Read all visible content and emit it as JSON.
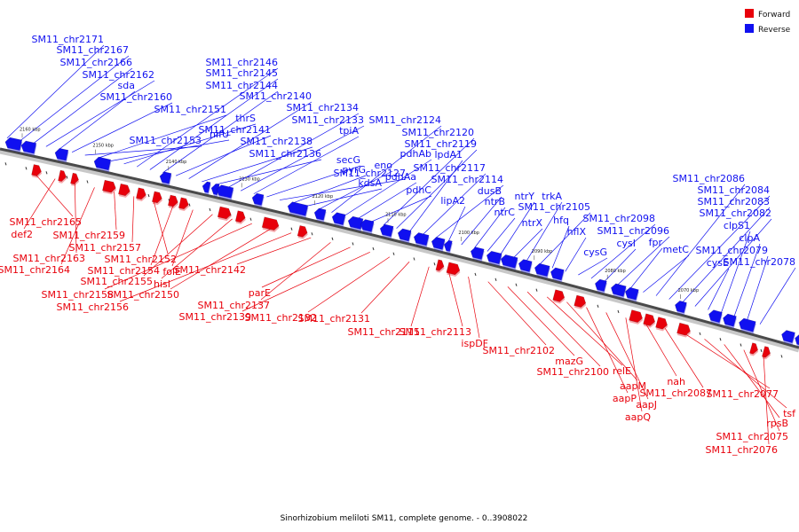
{
  "caption": "Sinorhizobium meliloti SM11, complete genome. - 0..3908022",
  "legend": [
    {
      "label": "Forward",
      "color": "#e8000b"
    },
    {
      "label": "Reverse",
      "color": "#1010f0"
    }
  ],
  "scale_unit": "kbp",
  "ticks": [
    {
      "kbp": 2160,
      "label": "2160 kbp"
    },
    {
      "kbp": 2150,
      "label": "2150 kbp"
    },
    {
      "kbp": 2140,
      "label": "2140 kbp"
    },
    {
      "kbp": 2130,
      "label": "2130 kbp"
    },
    {
      "kbp": 2120,
      "label": "2120 kbp"
    },
    {
      "kbp": 2110,
      "label": "2110 kbp"
    },
    {
      "kbp": 2100,
      "label": "2100 kbp"
    },
    {
      "kbp": 2090,
      "label": "2090 kbp"
    },
    {
      "kbp": 2080,
      "label": "2080 kbp"
    },
    {
      "kbp": 2070,
      "label": "2070 kbp"
    }
  ],
  "reverse_genes": [
    "SM11_chr2171",
    "SM11_chr2167",
    "SM11_chr2166",
    "SM11_chr2162",
    "sda",
    "SM11_chr2160",
    "SM11_chr2153",
    "SM11_chr2151",
    "nifU",
    "thrS",
    "SM11_chr2146",
    "SM11_chr2145",
    "SM11_chr2144",
    "SM11_chr2141",
    "SM11_chr2140",
    "SM11_chr2138",
    "SM11_chr2136",
    "SM11_chr2134",
    "SM11_chr2133",
    "tpiA",
    "secG",
    "SM11_chr2127",
    "pyrG",
    "kdsA",
    "eno",
    "SM11_chr2124",
    "pdhAb",
    "pdhAa",
    "pdhC",
    "SM11_chr2120",
    "SM11_chr2119",
    "lpdA1",
    "SM11_chr2117",
    "SM11_chr2114",
    "lipA2",
    "dusB",
    "ntrB",
    "ntrC",
    "ntrY",
    "ntrX",
    "trkA",
    "SM11_chr2105",
    "hfq",
    "hflX",
    "cysG",
    "SM11_chr2098",
    "cysI",
    "SM11_chr2096",
    "fpr",
    "metC",
    "SM11_chr2086",
    "SM11_chr2084",
    "SM11_chr2083",
    "SM11_chr2082",
    "cysE",
    "clpS1",
    "clpA",
    "SM11_chr2079",
    "SM11_chr2078"
  ],
  "forward_genes": [
    "SM11_chr2165",
    "def2",
    "SM11_chr2163",
    "SM11_chr2164",
    "SM11_chr2159",
    "SM11_chr2157",
    "SM11_chr2152",
    "SM11_chr2154",
    "folE",
    "SM11_chr2155",
    "hisI",
    "SM11_chr2158",
    "SM11_chr2150",
    "SM11_chr2156",
    "SM11_chr2142",
    "SM11_chr2137",
    "parE",
    "SM11_chr2139",
    "SM11_chr2132",
    "SM11_chr2131",
    "SM11_chr2115",
    "SM11_chr2113",
    "ispDF",
    "SM11_chr2102",
    "mazG",
    "SM11_chr2100",
    "relE",
    "aapM",
    "aapP",
    "aapJ",
    "aapQ",
    "nah",
    "SM11_chr2087",
    "SM11_chr2077",
    "tsf",
    "rpsB",
    "SM11_chr2075",
    "SM11_chr2076"
  ]
}
